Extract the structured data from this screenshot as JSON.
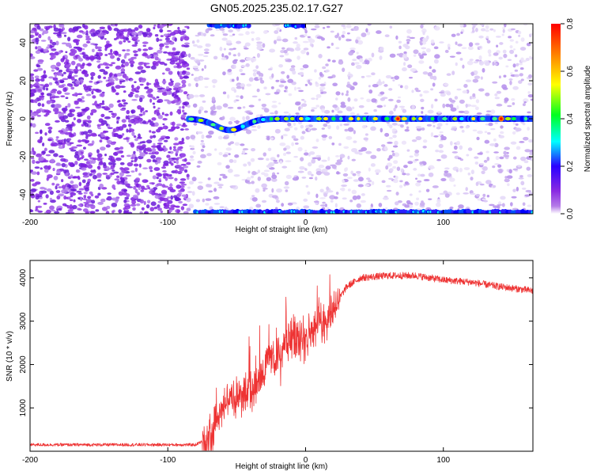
{
  "figure": {
    "title": "GN05.2025.235.02.17.G27"
  },
  "chart_data": [
    {
      "type": "heatmap",
      "name": "spectrogram",
      "xlabel": "Height of straight line (km)",
      "ylabel": "Frequency (Hz)",
      "xlim": [
        -200,
        165
      ],
      "ylim": [
        -50,
        50
      ],
      "xticks": [
        -200,
        -100,
        0,
        100
      ],
      "xtick_labels": [
        "-200",
        "-100",
        "0",
        "100"
      ],
      "yticks": [
        -40,
        -20,
        0,
        20,
        40
      ],
      "ytick_labels": [
        "-40",
        "-20",
        "0",
        "20",
        "40"
      ],
      "colorbar": {
        "label": "Normalized spectral amplitude",
        "range": [
          0,
          0.8
        ],
        "ticks": [
          0,
          0.2,
          0.4,
          0.6,
          0.8
        ],
        "tick_labels": [
          "0.0",
          "0.2",
          "0.4",
          "0.6",
          "0.8"
        ],
        "colormap": [
          "#ffffff",
          "#8a2be2",
          "#0000ff",
          "#00ffff",
          "#00ff00",
          "#ffff00",
          "#ff8000",
          "#ff0000"
        ]
      },
      "features": [
        {
          "name": "dense noise region",
          "x_range": [
            -200,
            -85
          ],
          "amplitude": 0.05
        },
        {
          "name": "sparse noise region",
          "x_range": [
            -85,
            165
          ],
          "amplitude": 0.02
        },
        {
          "name": "carrier line",
          "x_range": [
            -85,
            165
          ],
          "frequency": 0,
          "amplitude": 0.3,
          "peak_amplitude": 0.8,
          "dip_at": -55
        },
        {
          "name": "top edge signal",
          "x_range": [
            -70,
            0
          ],
          "frequency": 49
        },
        {
          "name": "bottom edge signal",
          "x_range": [
            -80,
            165
          ],
          "frequency": -49
        }
      ]
    },
    {
      "type": "line",
      "name": "snr",
      "xlabel": "Height of straight line (km)",
      "ylabel": "SNR (10 * v/v)",
      "xlim": [
        -200,
        165
      ],
      "ylim": [
        0,
        4400
      ],
      "xticks": [
        -200,
        -100,
        0,
        100
      ],
      "xtick_labels": [
        "-200",
        "-100",
        "0",
        "100"
      ],
      "yticks": [
        1000,
        2000,
        3000,
        4000
      ],
      "ytick_labels": [
        "1000",
        "2000",
        "3000",
        "4000"
      ],
      "color": "#ee3333",
      "profile": [
        [
          -200,
          150
        ],
        [
          -80,
          150
        ],
        [
          -70,
          300
        ],
        [
          -65,
          800
        ],
        [
          -60,
          1100
        ],
        [
          -50,
          1200
        ],
        [
          -40,
          1500
        ],
        [
          -30,
          1900
        ],
        [
          -20,
          2300
        ],
        [
          -10,
          2600
        ],
        [
          0,
          2700
        ],
        [
          10,
          2900
        ],
        [
          20,
          3300
        ],
        [
          30,
          3800
        ],
        [
          40,
          4000
        ],
        [
          60,
          4050
        ],
        [
          80,
          4050
        ],
        [
          100,
          3950
        ],
        [
          120,
          3900
        ],
        [
          140,
          3800
        ],
        [
          165,
          3700
        ]
      ]
    }
  ]
}
